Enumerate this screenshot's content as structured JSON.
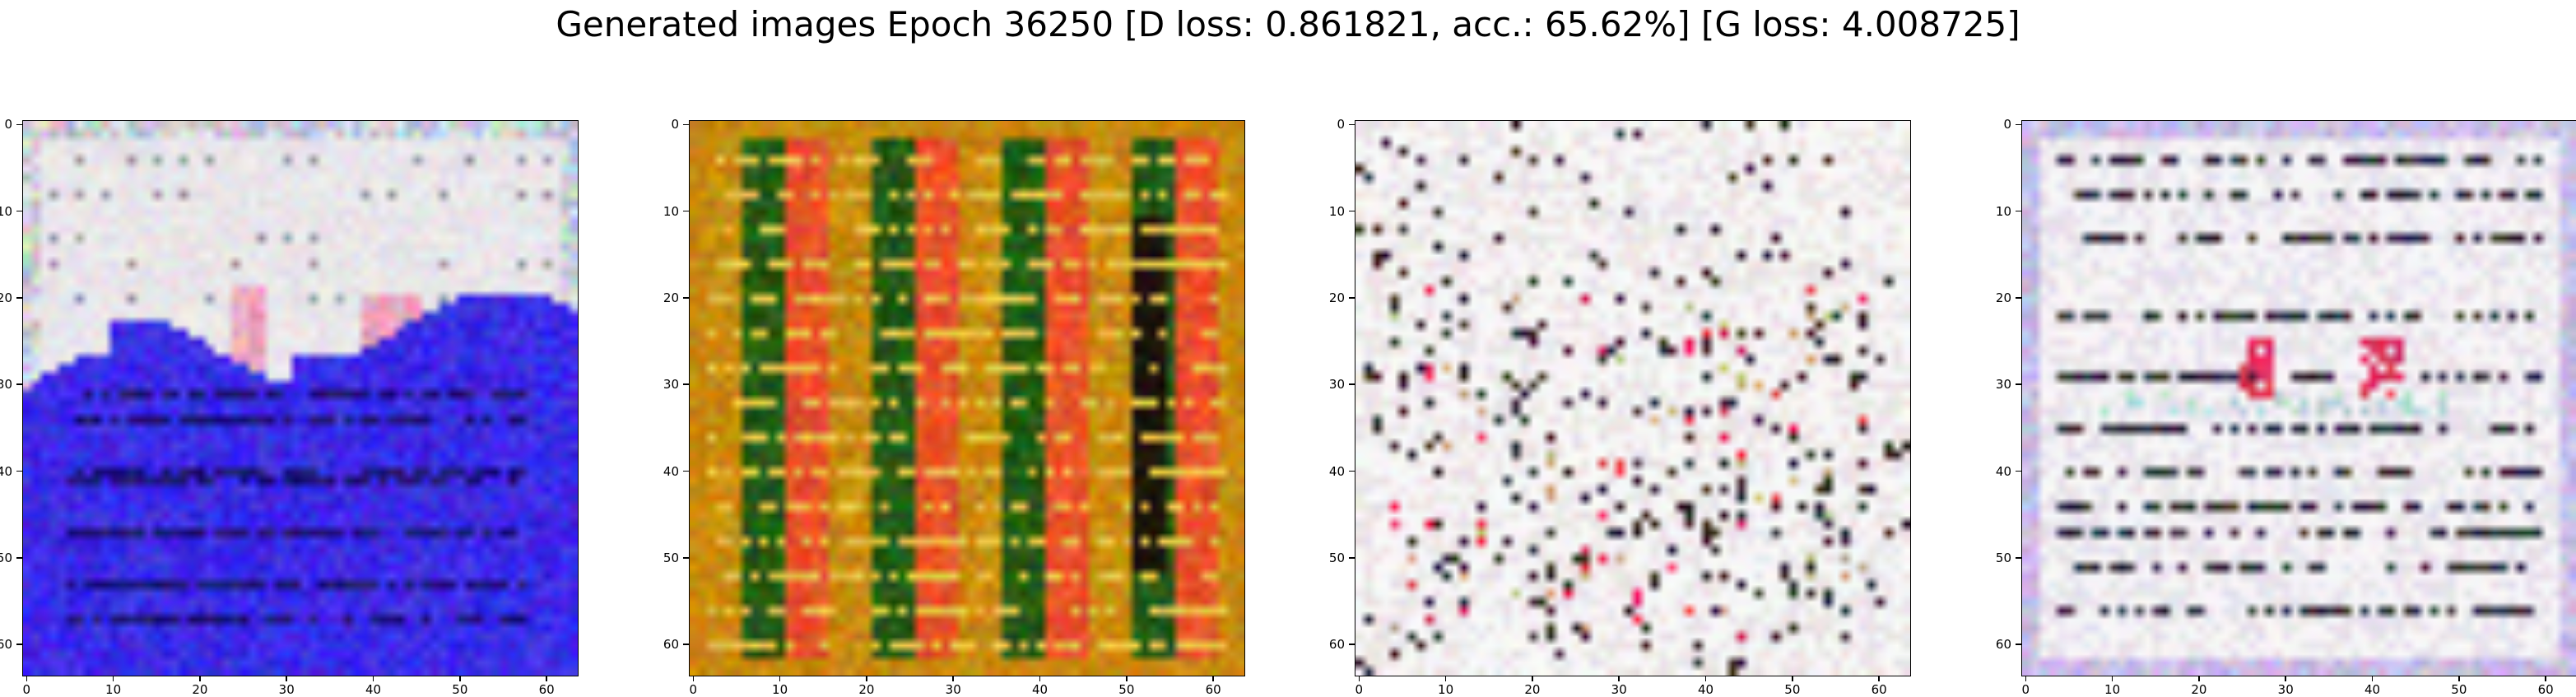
{
  "figure": {
    "title": "Generated images Epoch 36250 [D loss: 0.861821, acc.: 65.62%] [G loss: 4.008725]"
  },
  "axes": {
    "x_ticks": [
      "0",
      "10",
      "20",
      "30",
      "40",
      "50",
      "60"
    ],
    "y_ticks": [
      "0",
      "10",
      "20",
      "30",
      "40",
      "50",
      "60"
    ],
    "pixel_range": [
      0,
      63
    ]
  },
  "panels": [
    {
      "id": "sample-1",
      "description_icon": "generated-document-image",
      "palette": [
        "#e9e6ea",
        "#3b2ce6",
        "#1d1470",
        "#f2a3c0",
        "#c8cfd9"
      ]
    },
    {
      "id": "sample-2",
      "description_icon": "generated-document-image",
      "palette": [
        "#c88a10",
        "#e8512a",
        "#245a14",
        "#1a140c",
        "#e8c64a"
      ]
    },
    {
      "id": "sample-3",
      "description_icon": "generated-document-image",
      "palette": [
        "#ece6e8",
        "#f7f7f7",
        "#2a1c22",
        "#e62050",
        "#c4b070"
      ]
    },
    {
      "id": "sample-4",
      "description_icon": "generated-document-image",
      "palette": [
        "#e8e4ec",
        "#f7f5f7",
        "#2e2a36",
        "#e2305a",
        "#b4dad8"
      ]
    }
  ]
}
